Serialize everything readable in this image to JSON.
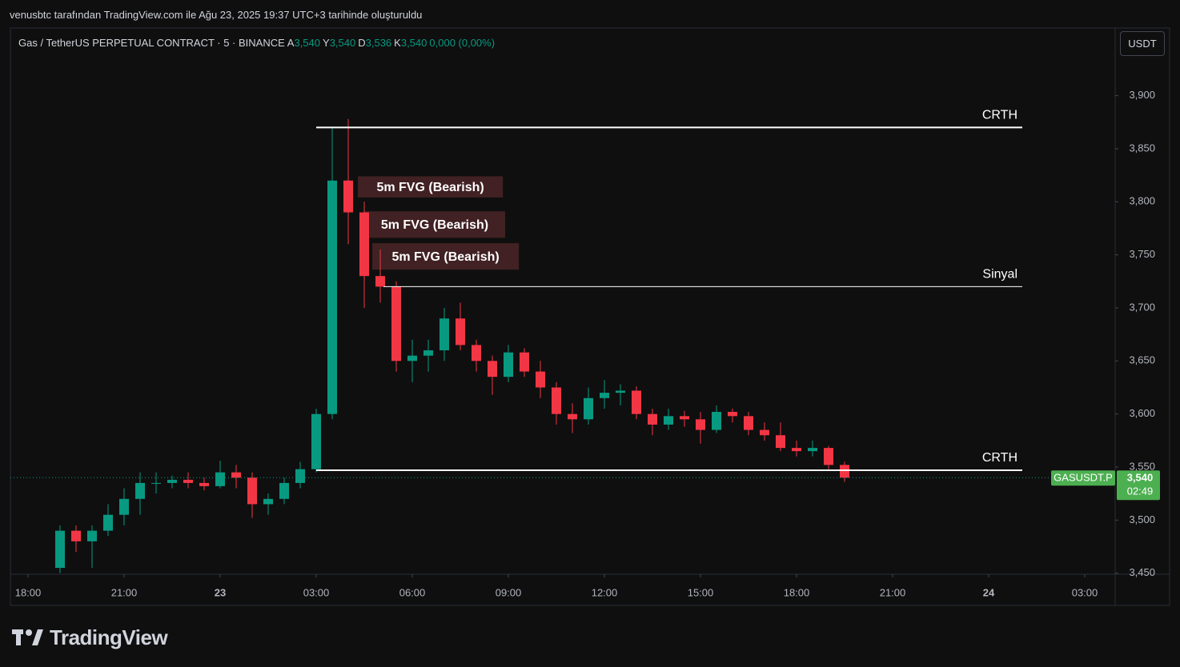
{
  "header": {
    "caption": "venusbtc tarafından TradingView.com ile Ağu 23, 2025 19:37 UTC+3 tarihinde oluşturuldu"
  },
  "chart_data": {
    "type": "candlestick",
    "title": "Gas / TetherUS PERPETUAL CONTRACT · 5 · BINANCE",
    "ohlc_legend": [
      {
        "key": "A",
        "value": 3.54,
        "label": "3,540"
      },
      {
        "key": "Y",
        "value": 3.54,
        "label": "3,540"
      },
      {
        "key": "D",
        "value": 3.536,
        "label": "3,536"
      },
      {
        "key": "K",
        "value": 3.54,
        "label": "3,540"
      }
    ],
    "change": "0,000 (0,00%)",
    "currency": "USDT",
    "up_color": "#089981",
    "down_color": "#f23645",
    "x": [
      1,
      1.5,
      2,
      2.5,
      3,
      3.5,
      4,
      4.5,
      5,
      5.5,
      6,
      6.5,
      7,
      7.5,
      8,
      8.5,
      9,
      9.5,
      10,
      10.5,
      11,
      11.5,
      12,
      12.5,
      13,
      13.5,
      14,
      14.5,
      15,
      15.5,
      16,
      16.5,
      17,
      17.5,
      18,
      18.5,
      19,
      19.5,
      20,
      20.5,
      21,
      21.5,
      22,
      22.5,
      23,
      23.5,
      24,
      24.5,
      25,
      25.5
    ],
    "open": [
      3.455,
      3.49,
      3.48,
      3.49,
      3.505,
      3.52,
      3.535,
      3.535,
      3.538,
      3.535,
      3.532,
      3.545,
      3.54,
      3.515,
      3.52,
      3.535,
      3.548,
      3.6,
      3.82,
      3.79,
      3.73,
      3.72,
      3.65,
      3.655,
      3.66,
      3.69,
      3.665,
      3.65,
      3.635,
      3.658,
      3.64,
      3.625,
      3.6,
      3.595,
      3.615,
      3.62,
      3.622,
      3.6,
      3.59,
      3.598,
      3.595,
      3.585,
      3.602,
      3.598,
      3.585,
      3.58,
      3.568,
      3.565,
      3.568,
      3.552
    ],
    "high": [
      3.495,
      3.495,
      3.495,
      3.515,
      3.53,
      3.545,
      3.545,
      3.542,
      3.545,
      3.54,
      3.556,
      3.552,
      3.545,
      3.525,
      3.54,
      3.555,
      3.605,
      3.87,
      3.878,
      3.8,
      3.755,
      3.725,
      3.67,
      3.67,
      3.7,
      3.705,
      3.67,
      3.655,
      3.665,
      3.662,
      3.65,
      3.63,
      3.61,
      3.625,
      3.632,
      3.628,
      3.626,
      3.605,
      3.605,
      3.603,
      3.602,
      3.608,
      3.605,
      3.602,
      3.592,
      3.592,
      3.575,
      3.575,
      3.57,
      3.555
    ],
    "low": [
      3.45,
      3.47,
      3.455,
      3.485,
      3.495,
      3.505,
      3.525,
      3.53,
      3.53,
      3.528,
      3.53,
      3.53,
      3.502,
      3.505,
      3.515,
      3.53,
      3.545,
      3.595,
      3.76,
      3.7,
      3.705,
      3.64,
      3.63,
      3.64,
      3.65,
      3.66,
      3.64,
      3.618,
      3.63,
      3.635,
      3.615,
      3.59,
      3.582,
      3.59,
      3.605,
      3.608,
      3.595,
      3.58,
      3.585,
      3.588,
      3.572,
      3.582,
      3.592,
      3.58,
      3.575,
      3.565,
      3.56,
      3.56,
      3.548,
      3.536
    ],
    "close": [
      3.49,
      3.48,
      3.49,
      3.505,
      3.52,
      3.535,
      3.535,
      3.538,
      3.535,
      3.532,
      3.545,
      3.54,
      3.515,
      3.52,
      3.535,
      3.548,
      3.6,
      3.82,
      3.79,
      3.73,
      3.72,
      3.65,
      3.655,
      3.66,
      3.69,
      3.665,
      3.65,
      3.635,
      3.658,
      3.64,
      3.625,
      3.6,
      3.595,
      3.615,
      3.62,
      3.622,
      3.6,
      3.59,
      3.598,
      3.595,
      3.585,
      3.602,
      3.598,
      3.585,
      3.58,
      3.568,
      3.565,
      3.568,
      3.552,
      3.54
    ],
    "xlim": [
      -0.55,
      33.95
    ],
    "xticks": [
      {
        "value": 0,
        "label": "18:00"
      },
      {
        "value": 3,
        "label": "21:00"
      },
      {
        "value": 6,
        "label": "23"
      },
      {
        "value": 9,
        "label": "03:00"
      },
      {
        "value": 12,
        "label": "06:00"
      },
      {
        "value": 15,
        "label": "09:00"
      },
      {
        "value": 18,
        "label": "12:00"
      },
      {
        "value": 21,
        "label": "15:00"
      },
      {
        "value": 24,
        "label": "18:00"
      },
      {
        "value": 27,
        "label": "21:00"
      },
      {
        "value": 30,
        "label": "24"
      },
      {
        "value": 33,
        "label": "03:00"
      }
    ],
    "ylim": [
      3.449,
      3.96
    ],
    "yticks": [
      {
        "value": 3.45,
        "label": "3,450"
      },
      {
        "value": 3.5,
        "label": "3,500"
      },
      {
        "value": 3.55,
        "label": "3,550"
      },
      {
        "value": 3.6,
        "label": "3,600"
      },
      {
        "value": 3.65,
        "label": "3,650"
      },
      {
        "value": 3.7,
        "label": "3,700"
      },
      {
        "value": 3.75,
        "label": "3,750"
      },
      {
        "value": 3.8,
        "label": "3,800"
      },
      {
        "value": 3.85,
        "label": "3,850"
      },
      {
        "value": 3.9,
        "label": "3,900"
      }
    ],
    "levels": [
      {
        "label": "CRTH",
        "value": 3.87,
        "x": [
          9.0,
          31.05
        ]
      },
      {
        "label": "Sinyal",
        "value": 3.72,
        "x": [
          11.1,
          31.05
        ]
      },
      {
        "label": "CRTH",
        "value": 3.547,
        "x": [
          9.0,
          31.05
        ]
      }
    ],
    "zones": [
      {
        "label": "5m FVG (Bearish)",
        "x": [
          10.3,
          14.83
        ],
        "y": [
          3.804,
          3.824
        ]
      },
      {
        "label": "5m FVG (Bearish)",
        "x": [
          10.5,
          14.9
        ],
        "y": [
          3.766,
          3.791
        ]
      },
      {
        "label": "5m FVG (Bearish)",
        "x": [
          10.75,
          15.33
        ],
        "y": [
          3.736,
          3.761
        ]
      }
    ],
    "last_price": {
      "symbol": "GASUSDT.P",
      "value": 3.54,
      "label": "3,540",
      "countdown": "02:49"
    }
  },
  "footer": {
    "logo": "TradingView"
  }
}
